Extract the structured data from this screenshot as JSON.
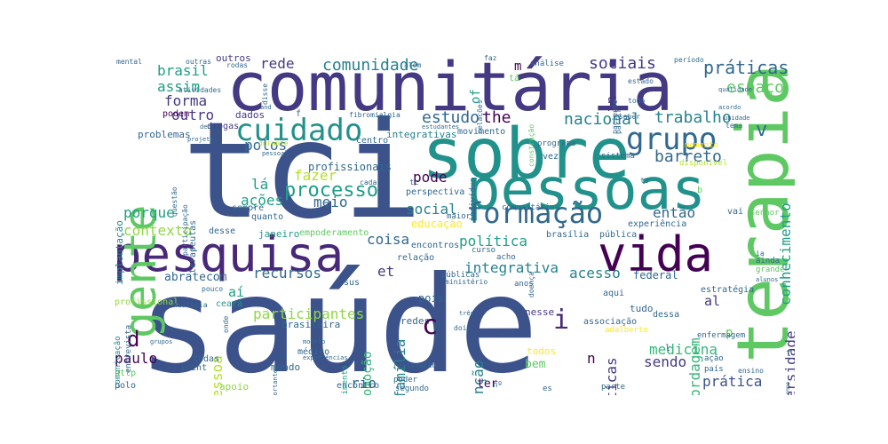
{
  "palette": [
    "#440154",
    "#482878",
    "#3e4989",
    "#31688e",
    "#26828e",
    "#1f9e89",
    "#35b779",
    "#6ece58",
    "#b5de2b",
    "#fde725"
  ],
  "words": {
    "saude": "saúde",
    "tci": "tci",
    "comunitaria": "comunitária",
    "terapia": "terapia",
    "sobre": "sobre",
    "pessoas": "pessoas",
    "pesquisa": "pesquisa",
    "gente": "gente",
    "vida": "vida",
    "cuidado": "cuidado",
    "formacao": "formação",
    "grupo": "grupo",
    "processo": "processo",
    "praticas": "práticas",
    "comunidade": "comunidade",
    "sociais": "sociais",
    "espaco": "espaço",
    "trabalho": "trabalho",
    "barreto": "barreto",
    "conhecimento": "conhecimento",
    "nacional": "nacional",
    "estudo": "estudo",
    "the": "the",
    "rede": "rede",
    "brasil": "brasil",
    "assim": "assim",
    "forma": "forma",
    "outro": "outro",
    "polos": "polos",
    "la": "lá",
    "acoes": "ações",
    "porque": "porque",
    "contexto": "contexto",
    "fazer": "fazer",
    "meio": "meio",
    "pode": "pode",
    "social": "social",
    "entao": "então",
    "educacao": "educação",
    "coisa": "coisa",
    "politica": "política",
    "integrativa": "integrativa",
    "acesso": "acesso",
    "abordagem": "abordagem",
    "universidade": "universidade",
    "et": "et",
    "recursos": "recursos",
    "abratecom": "abratecom",
    "ai": "aí",
    "participantes": "participantes",
    "pessoa": "pessoa",
    "paulo": "paulo",
    "promocao": "promoção",
    "familia": "família",
    "atencao": "atenção",
    "politicas": "políticas",
    "medicina": "medicina",
    "sendo": "sendo",
    "pratica": "prática",
    "rio": "rio",
    "federal": "federal",
    "al": "al",
    "pois": "pois",
    "redes": "redes",
    "nesse": "nesse",
    "bem": "bem",
    "ter": "ter",
    "tudo": "tudo",
    "todos": "todos",
    "i": "i",
    "c": "c",
    "d": "d",
    "p": "p",
    "n": "n",
    "v": "v",
    "in": "in",
    "integrativas": "integrativas",
    "profissionais": "profissionais",
    "terapeutas": "terapeutas",
    "implantacao": "implantação",
    "problemas": "problemas",
    "dados": "dados",
    "outros": "outros",
    "podem": "podem",
    "drogas": "drogas",
    "quanto": "quanto",
    "sempre": "sempre",
    "desse": "desse",
    "janeiro": "janeiro",
    "empoderamento": "empoderamento",
    "encontros": "encontros",
    "brasileira": "brasileira",
    "mundo": "mundo",
    "medico": "médico",
    "apoio": "apoio",
    "todas": "todas",
    "inint": "inint",
    "ceara": "ceará",
    "entrevista": "entrevista",
    "comunicacao": "comunicação",
    "profissional": "profissional",
    "historia": "história",
    "polo": "polo",
    "http": "http",
    "experiencia": "experiência",
    "brasilia": "brasília",
    "publica": "pública",
    "ainda": "ainda",
    "grande": "grande",
    "estrategia": "estratégia",
    "enfermagem": "enfermagem",
    "ensino": "ensino",
    "parte": "parte",
    "acao": "ação",
    "pais": "país",
    "associacao": "associação",
    "adalberto": "adalberto",
    "dessa": "dessa",
    "aqui": "aqui",
    "anos": "anos",
    "dois": "dois",
    "relacao": "relação",
    "curso": "curso",
    "acho": "acho",
    "publicas": "públicas",
    "ministerio": "ministério",
    "encontro": "encontro",
    "poder": "poder",
    "realizacao": "realização",
    "desenvolvimento": "desenvolvimento",
    "sus": "sus",
    "segundo": "segundo",
    "no": "nº",
    "es": "es",
    "maior": "maior",
    "comunitarios": "comunitários",
    "perspectiva": "perspectiva",
    "tc": "tc",
    "individuo": "indivíduo",
    "vez": "vez",
    "sistema": "sistema",
    "disponivel": "disponível",
    "momento": "momento",
    "centro": "centro",
    "movimento": "movimento",
    "estudantes": "estudantes",
    "fibromialgia": "fibromialgia",
    "construcao": "construção",
    "programa": "programa",
    "relacoes": "relações",
    "of": "of",
    "analise": "análise",
    "m": "m",
    "ta": "tá",
    "paciente": "paciente",
    "estado": "estado",
    "todo": "todo",
    "partir": "partir",
    "saber": "saber",
    "tema": "tema",
    "periodo": "período",
    "qualidade": "qualidade",
    "acordo": "acordo",
    "unidade": "unidade",
    "senhor": "senhor",
    "vai": "vai",
    "mental": "mental",
    "outras": "outras",
    "rodas": "rodas",
    "atividades": "atividades",
    "disse": "disse",
    "and": "and",
    "alem": "além",
    "faz": "faz",
    "questao": "questão",
    "participacao": "participação",
    "projeto": "projeto",
    "durante": "durante",
    "dentro": "dentro",
    "pessoal": "pessoal",
    "cada": "cada",
    "grupos": "grupos",
    "modelo": "modelo",
    "experiencias": "experiências",
    "onde": "onde",
    "pouco": "pouco",
    "importante": "importante",
    "tres": "três",
    "alunos": "alunos",
    "tempo": "tempo",
    "ia": "ia",
    "doenca": "doença",
    "to": "to",
    "l": "l",
    "t": "t",
    "b": "b",
    "f": "f"
  }
}
